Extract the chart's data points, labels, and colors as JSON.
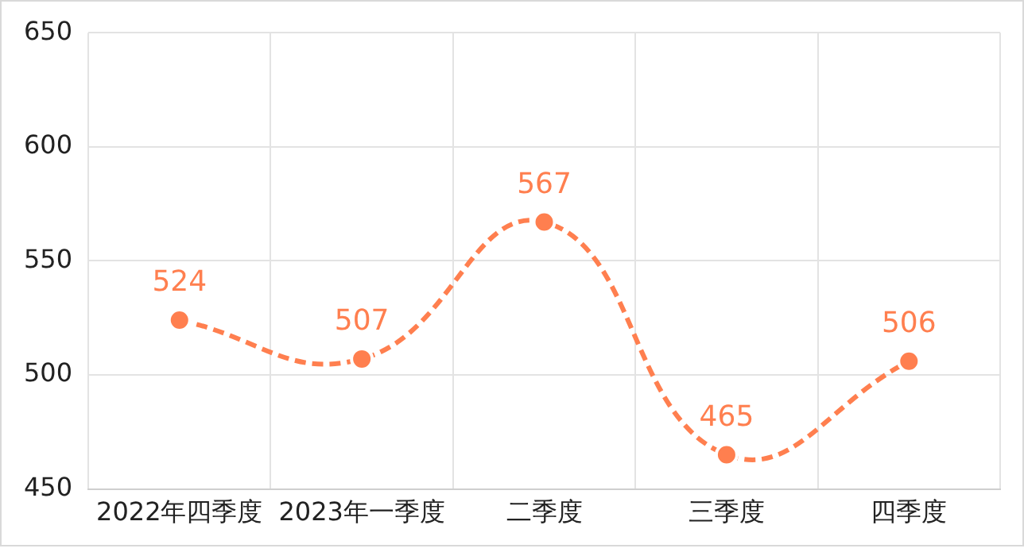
{
  "chart_data": {
    "type": "line",
    "categories": [
      "2022年四季度",
      "2023年一季度",
      "二季度",
      "三季度",
      "四季度"
    ],
    "series": [
      {
        "color": "#ff7f4f",
        "values": [
          524,
          507,
          567,
          465,
          506
        ]
      }
    ],
    "ylim": [
      450,
      650
    ],
    "yticks": [
      450,
      500,
      550,
      600,
      650
    ],
    "grid": true,
    "legend": false,
    "marker": "circle",
    "line_style": "dashed",
    "data_labels": true
  }
}
